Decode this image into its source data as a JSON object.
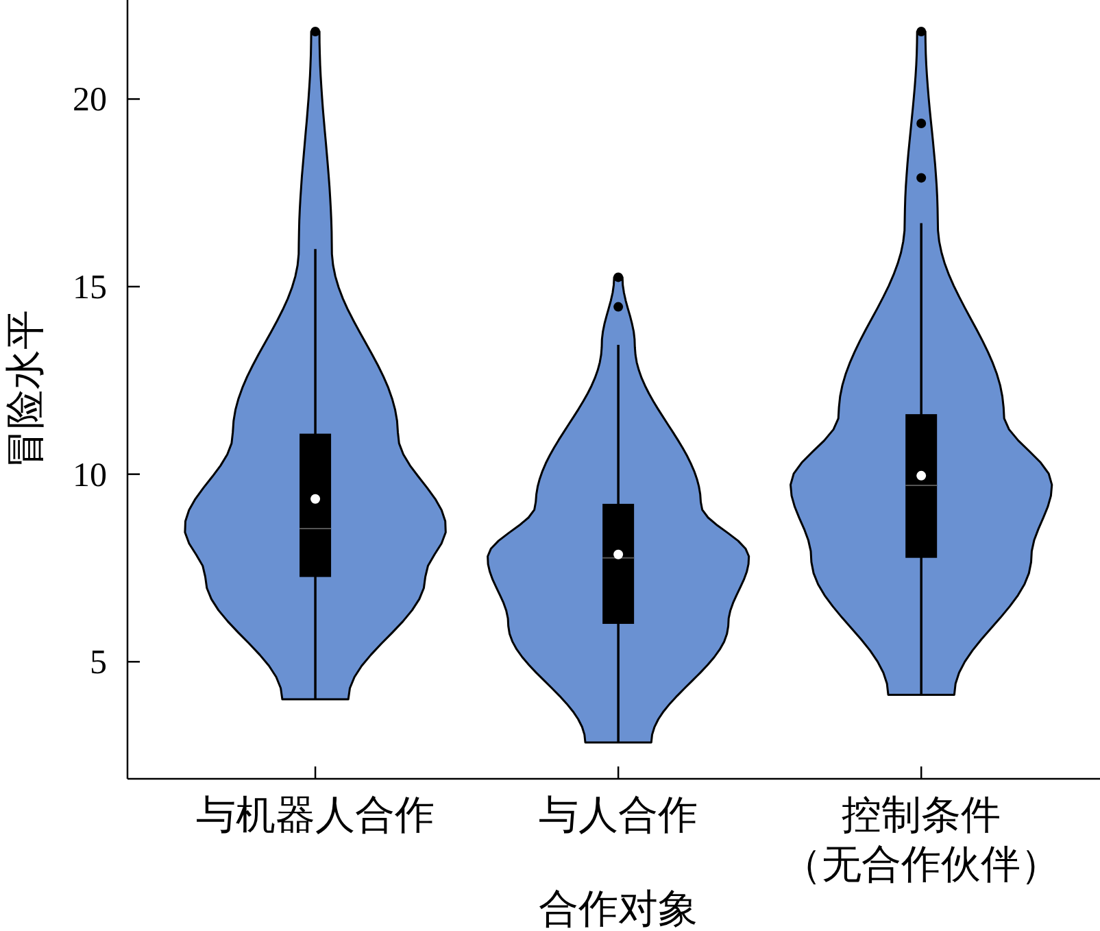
{
  "chart_data": {
    "type": "box",
    "xlabel": "合作对象",
    "ylabel": "冒险水平",
    "categories": [
      "与机器人合作",
      "与人合作",
      "控制条件（无合作伙伴）"
    ],
    "ylim": [
      1.88,
      22.64
    ],
    "yticks": [
      5,
      10,
      15,
      20
    ],
    "grid": false,
    "boxes": [
      {
        "low": 4.0,
        "q1": 7.26,
        "median": 8.55,
        "q3": 11.08,
        "high": 16.0,
        "mean": 9.34,
        "outliers": [
          21.8
        ]
      },
      {
        "low": 2.85,
        "q1": 6.01,
        "median": 7.77,
        "q3": 9.21,
        "high": 13.45,
        "mean": 7.86,
        "outliers": [
          15.25,
          14.46
        ]
      },
      {
        "low": 4.12,
        "q1": 7.77,
        "median": 9.7,
        "q3": 11.6,
        "high": 16.69,
        "mean": 9.96,
        "outliers": [
          21.8,
          19.35,
          17.9
        ]
      }
    ]
  }
}
